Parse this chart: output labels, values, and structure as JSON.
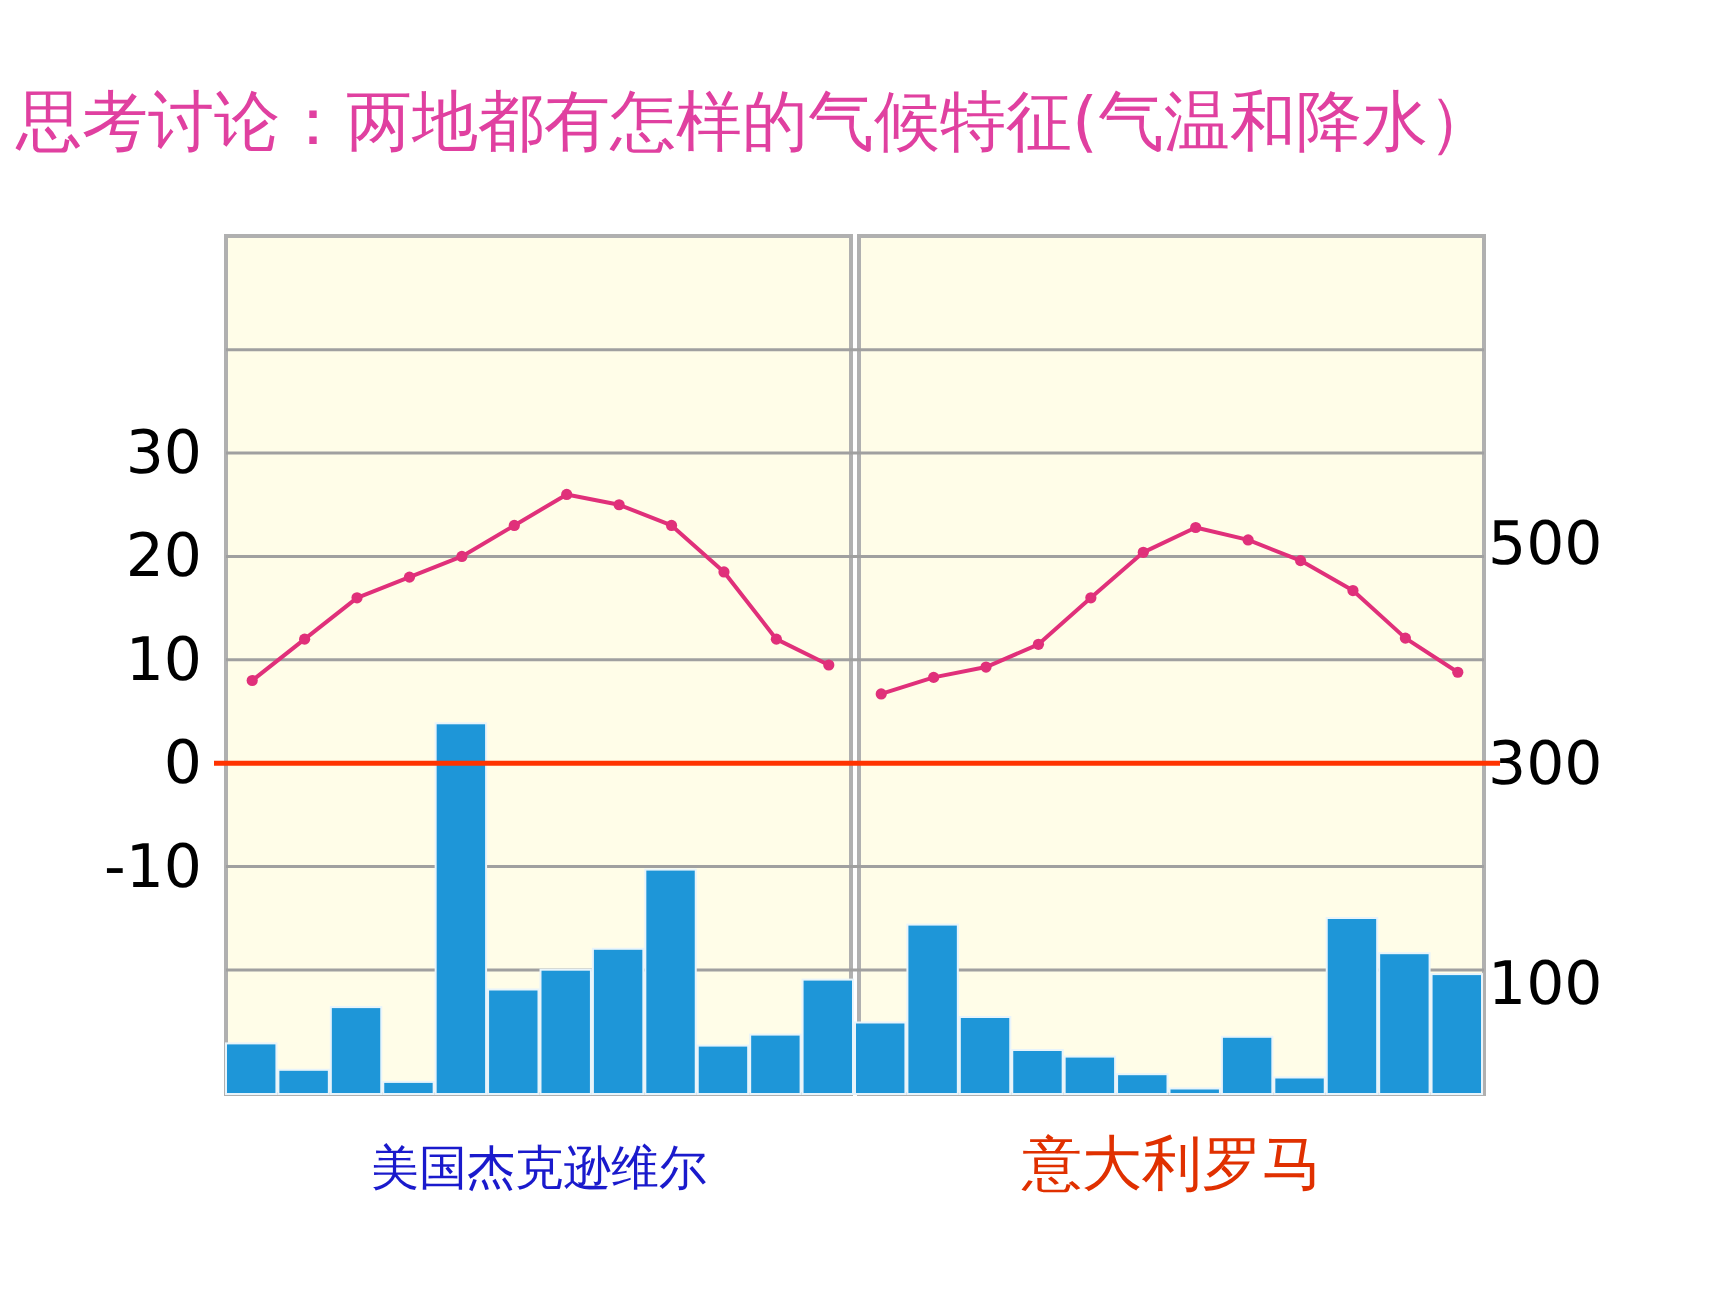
{
  "chart_data": {
    "type": "bar",
    "title": "思考讨论：两地都有怎样的气候特征(气温和降水）",
    "categories": [
      null,
      null,
      null,
      null,
      null,
      null,
      null,
      null,
      null,
      null,
      null,
      null,
      null,
      null,
      null,
      null,
      null,
      null,
      null,
      null,
      null,
      null,
      null,
      null
    ],
    "series": [
      {
        "axis": "y2",
        "color": "#1e96d8",
        "values": [
          46,
          22,
          79,
          11,
          337,
          95,
          113,
          132,
          204,
          44,
          54,
          104,
          65,
          154,
          70,
          40,
          34,
          18,
          5,
          52,
          15,
          160,
          128,
          109
        ]
      },
      {
        "type": "line",
        "axis": "y",
        "color": "#e0307a",
        "marker": "circle",
        "values": [
          8,
          12,
          16,
          18,
          20,
          23,
          26,
          25,
          23,
          18.5,
          12,
          9.5,
          null,
          null,
          null,
          null,
          null,
          null,
          null,
          null,
          null,
          null,
          null,
          null
        ]
      },
      {
        "type": "line",
        "axis": "y",
        "color": "#e0307a",
        "marker": "circle",
        "values": [
          null,
          null,
          null,
          null,
          null,
          null,
          null,
          null,
          null,
          null,
          null,
          null,
          6.7,
          8.3,
          9.3,
          11.5,
          16,
          20.4,
          22.8,
          21.6,
          19.6,
          16.7,
          12.1,
          8.8
        ]
      }
    ],
    "ylim": [
      -32,
      51
    ],
    "yticks": [
      {
        "value": -20,
        "label": null
      },
      -10,
      0,
      10,
      20,
      30,
      {
        "value": 40,
        "label": null
      }
    ],
    "y2lim": [
      0,
      780
    ],
    "y2ticks": [
      100,
      300,
      500
    ],
    "grid": "y",
    "ref_lines": [
      {
        "axis": "y",
        "value": 0,
        "color": "#ff3300"
      }
    ],
    "annotations": [
      "美国杰克逊维尔",
      "意大利罗马"
    ]
  }
}
